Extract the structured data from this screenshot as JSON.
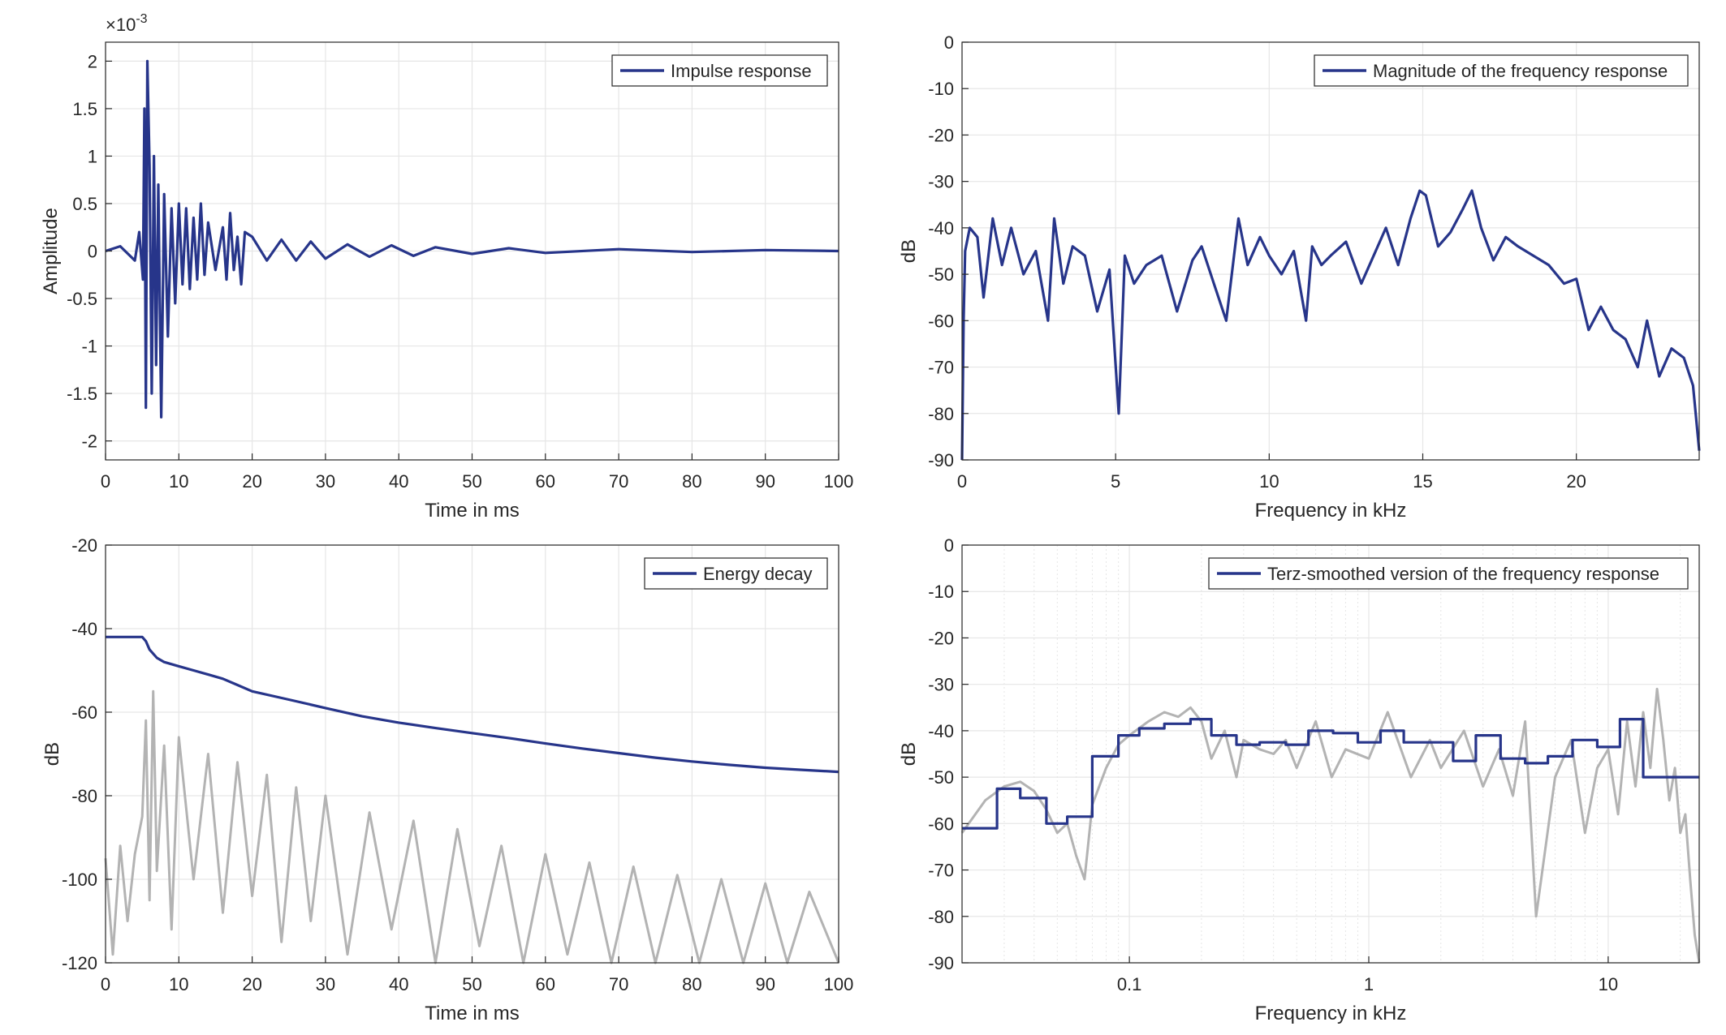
{
  "colors": {
    "series_primary": "#27358a",
    "series_gray": "#b3b3b3",
    "grid": "#e6e6e6",
    "axes": "#262626",
    "background": "#ffffff"
  },
  "chart_data": [
    {
      "id": "impulse",
      "type": "line",
      "title": "",
      "xlabel": "Time in ms",
      "ylabel": "Amplitude",
      "exponent_label": "×10",
      "exponent_value": "-3",
      "xlim": [
        0,
        100
      ],
      "ylim": [
        -2.2,
        2.2
      ],
      "xscale": "linear",
      "xticks": [
        0,
        10,
        20,
        30,
        40,
        50,
        60,
        70,
        80,
        90,
        100
      ],
      "xticklabels": [
        "0",
        "10",
        "20",
        "30",
        "40",
        "50",
        "60",
        "70",
        "80",
        "90",
        "100"
      ],
      "yticks": [
        2,
        1.5,
        1,
        0.5,
        0,
        -0.5,
        -1,
        -1.5,
        -2
      ],
      "yticklabels": [
        "2",
        "1.5",
        "1",
        "0.5",
        "0",
        "-0.5",
        "-1",
        "-1.5",
        "-2"
      ],
      "grid": true,
      "legend": {
        "position": "top-right",
        "entries": [
          "Impulse response"
        ]
      },
      "series": [
        {
          "name": "Impulse response",
          "color": "#27358a",
          "x": [
            0,
            2,
            4,
            4.6,
            5.1,
            5.3,
            5.5,
            5.7,
            6.0,
            6.3,
            6.6,
            6.9,
            7.2,
            7.6,
            8.0,
            8.5,
            9.0,
            9.5,
            10.0,
            10.5,
            11.0,
            11.5,
            12.0,
            12.5,
            13.0,
            13.5,
            14.0,
            15.0,
            16.0,
            16.5,
            17.0,
            17.5,
            18.0,
            18.5,
            19.0,
            20.0,
            22.0,
            24.0,
            26.0,
            28.0,
            30.0,
            33.0,
            36.0,
            39.0,
            42.0,
            45.0,
            50.0,
            55.0,
            60.0,
            70.0,
            80.0,
            90.0,
            100.0
          ],
          "values": [
            0.0,
            0.05,
            -0.1,
            0.2,
            -0.3,
            1.5,
            -1.65,
            2.0,
            0.9,
            -1.5,
            1.0,
            -1.2,
            0.7,
            -1.75,
            0.6,
            -0.9,
            0.45,
            -0.55,
            0.5,
            -0.35,
            0.45,
            -0.4,
            0.35,
            -0.3,
            0.5,
            -0.25,
            0.3,
            -0.2,
            0.25,
            -0.3,
            0.4,
            -0.2,
            0.15,
            -0.35,
            0.2,
            0.15,
            -0.1,
            0.12,
            -0.1,
            0.1,
            -0.08,
            0.07,
            -0.06,
            0.06,
            -0.05,
            0.04,
            -0.03,
            0.03,
            -0.02,
            0.02,
            -0.01,
            0.01,
            0.0
          ]
        }
      ]
    },
    {
      "id": "magnitude",
      "type": "line",
      "title": "",
      "xlabel": "Frequency in kHz",
      "ylabel": "dB",
      "xlim": [
        0,
        24
      ],
      "ylim": [
        -90,
        0
      ],
      "xscale": "linear",
      "xticks": [
        0,
        5,
        10,
        15,
        20
      ],
      "xticklabels": [
        "0",
        "5",
        "10",
        "15",
        "20"
      ],
      "yticks": [
        0,
        -10,
        -20,
        -30,
        -40,
        -50,
        -60,
        -70,
        -80,
        -90
      ],
      "yticklabels": [
        "0",
        "-10",
        "-20",
        "-30",
        "-40",
        "-50",
        "-60",
        "-70",
        "-80",
        "-90"
      ],
      "grid": true,
      "legend": {
        "position": "top-right",
        "entries": [
          "Magnitude of the frequency response"
        ]
      },
      "series": [
        {
          "name": "Magnitude of the frequency response",
          "color": "#27358a",
          "x": [
            0.0,
            0.05,
            0.1,
            0.25,
            0.5,
            0.7,
            1.0,
            1.3,
            1.6,
            2.0,
            2.4,
            2.8,
            3.0,
            3.3,
            3.6,
            4.0,
            4.4,
            4.8,
            5.1,
            5.3,
            5.6,
            6.0,
            6.5,
            7.0,
            7.5,
            7.8,
            8.2,
            8.6,
            9.0,
            9.3,
            9.7,
            10.0,
            10.4,
            10.8,
            11.2,
            11.4,
            11.7,
            12.0,
            12.5,
            13.0,
            13.4,
            13.8,
            14.2,
            14.6,
            14.9,
            15.1,
            15.5,
            15.9,
            16.3,
            16.6,
            16.9,
            17.3,
            17.7,
            18.1,
            18.6,
            19.1,
            19.6,
            20.0,
            20.4,
            20.8,
            21.2,
            21.6,
            22.0,
            22.3,
            22.7,
            23.1,
            23.5,
            23.8,
            24.0
          ],
          "values": [
            -90,
            -60,
            -45,
            -40,
            -42,
            -55,
            -38,
            -48,
            -40,
            -50,
            -45,
            -60,
            -38,
            -52,
            -44,
            -46,
            -58,
            -49,
            -80,
            -46,
            -52,
            -48,
            -46,
            -58,
            -47,
            -44,
            -52,
            -60,
            -38,
            -48,
            -42,
            -46,
            -50,
            -45,
            -60,
            -44,
            -48,
            -46,
            -43,
            -52,
            -46,
            -40,
            -48,
            -38,
            -32,
            -33,
            -44,
            -41,
            -36,
            -32,
            -40,
            -47,
            -42,
            -44,
            -46,
            -48,
            -52,
            -51,
            -62,
            -57,
            -62,
            -64,
            -70,
            -60,
            -72,
            -66,
            -68,
            -74,
            -88
          ]
        }
      ]
    },
    {
      "id": "energy",
      "type": "line",
      "title": "",
      "xlabel": "Time in ms",
      "ylabel": "dB",
      "xlim": [
        0,
        100
      ],
      "ylim": [
        -120,
        -20
      ],
      "xscale": "linear",
      "xticks": [
        0,
        10,
        20,
        30,
        40,
        50,
        60,
        70,
        80,
        90,
        100
      ],
      "xticklabels": [
        "0",
        "10",
        "20",
        "30",
        "40",
        "50",
        "60",
        "70",
        "80",
        "90",
        "100"
      ],
      "yticks": [
        -20,
        -40,
        -60,
        -80,
        -100,
        -120
      ],
      "yticklabels": [
        "-20",
        "-40",
        "-60",
        "-80",
        "-100",
        "-120"
      ],
      "grid": true,
      "legend": {
        "position": "top-right",
        "entries": [
          "Energy decay"
        ]
      },
      "series": [
        {
          "name": "",
          "color": "#b3b3b3",
          "x": [
            0,
            1,
            2,
            3,
            4,
            5,
            5.5,
            6,
            6.5,
            7,
            8,
            9,
            10,
            12,
            14,
            16,
            18,
            20,
            22,
            24,
            26,
            28,
            30,
            33,
            36,
            39,
            42,
            45,
            48,
            51,
            54,
            57,
            60,
            63,
            66,
            69,
            72,
            75,
            78,
            81,
            84,
            87,
            90,
            93,
            96,
            100
          ],
          "values": [
            -95,
            -118,
            -92,
            -110,
            -94,
            -85,
            -62,
            -105,
            -55,
            -98,
            -68,
            -112,
            -66,
            -100,
            -70,
            -108,
            -72,
            -104,
            -75,
            -115,
            -78,
            -110,
            -80,
            -118,
            -84,
            -112,
            -86,
            -120,
            -88,
            -116,
            -92,
            -120,
            -94,
            -118,
            -96,
            -120,
            -97,
            -120,
            -99,
            -120,
            -100,
            -120,
            -101,
            -120,
            -103,
            -120
          ]
        },
        {
          "name": "Energy decay",
          "color": "#27358a",
          "x": [
            0,
            2,
            4,
            5,
            5.5,
            6,
            7,
            8,
            10,
            12,
            14,
            16,
            18,
            20,
            25,
            30,
            35,
            40,
            45,
            50,
            55,
            60,
            65,
            70,
            75,
            80,
            85,
            90,
            95,
            100
          ],
          "values": [
            -42,
            -42,
            -42,
            -42,
            -43,
            -45,
            -47,
            -48,
            -49,
            -50,
            -51,
            -52,
            -53.5,
            -55,
            -57,
            -59,
            -61,
            -62.5,
            -63.8,
            -65,
            -66.2,
            -67.5,
            -68.7,
            -69.8,
            -70.9,
            -71.8,
            -72.6,
            -73.3,
            -73.8,
            -74.3
          ]
        }
      ]
    },
    {
      "id": "terz",
      "type": "line",
      "title": "",
      "xlabel": "Frequency in kHz",
      "ylabel": "dB",
      "xlim": [
        0.02,
        24
      ],
      "ylim": [
        -90,
        0
      ],
      "xscale": "log",
      "xticks": [
        0.1,
        1,
        10
      ],
      "xticklabels": [
        "0.1",
        "1",
        "10"
      ],
      "yticks": [
        0,
        -10,
        -20,
        -30,
        -40,
        -50,
        -60,
        -70,
        -80,
        -90
      ],
      "yticklabels": [
        "0",
        "-10",
        "-20",
        "-30",
        "-40",
        "-50",
        "-60",
        "-70",
        "-80",
        "-90"
      ],
      "grid": true,
      "legend": {
        "position": "top-right",
        "entries": [
          "Terz-smoothed version of the frequency response"
        ]
      },
      "series": [
        {
          "name": "",
          "color": "#b3b3b3",
          "x": [
            0.02,
            0.025,
            0.03,
            0.035,
            0.04,
            0.045,
            0.05,
            0.055,
            0.06,
            0.065,
            0.07,
            0.08,
            0.09,
            0.1,
            0.12,
            0.14,
            0.16,
            0.18,
            0.2,
            0.22,
            0.25,
            0.28,
            0.3,
            0.35,
            0.4,
            0.45,
            0.5,
            0.6,
            0.7,
            0.8,
            1.0,
            1.2,
            1.5,
            1.8,
            2.0,
            2.5,
            3.0,
            3.5,
            4.0,
            4.5,
            5.0,
            6.0,
            7.0,
            8.0,
            9.0,
            10.0,
            11.0,
            12.0,
            13.0,
            14.0,
            15.0,
            16.0,
            17.0,
            18.0,
            19.0,
            20.0,
            21.0,
            22.0,
            23.0,
            24.0
          ],
          "values": [
            -62,
            -55,
            -52,
            -51,
            -53,
            -57,
            -62,
            -60,
            -67,
            -72,
            -56,
            -48,
            -43,
            -41,
            -38,
            -36,
            -37,
            -35,
            -38,
            -46,
            -40,
            -50,
            -42,
            -44,
            -45,
            -42,
            -48,
            -38,
            -50,
            -44,
            -46,
            -36,
            -50,
            -42,
            -48,
            -40,
            -52,
            -44,
            -54,
            -38,
            -80,
            -50,
            -42,
            -62,
            -48,
            -44,
            -58,
            -38,
            -52,
            -36,
            -48,
            -31,
            -42,
            -55,
            -48,
            -62,
            -58,
            -72,
            -84,
            -90
          ]
        },
        {
          "name": "Terz-smoothed version of the frequency response",
          "color": "#27358a",
          "x": [
            0.02,
            0.028,
            0.028,
            0.035,
            0.035,
            0.045,
            0.045,
            0.055,
            0.055,
            0.07,
            0.07,
            0.09,
            0.09,
            0.11,
            0.11,
            0.14,
            0.14,
            0.18,
            0.18,
            0.22,
            0.22,
            0.28,
            0.28,
            0.35,
            0.35,
            0.45,
            0.45,
            0.56,
            0.56,
            0.71,
            0.71,
            0.9,
            0.9,
            1.12,
            1.12,
            1.4,
            1.4,
            1.8,
            1.8,
            2.25,
            2.25,
            2.8,
            2.8,
            3.55,
            3.55,
            4.5,
            4.5,
            5.6,
            5.6,
            7.1,
            7.1,
            9.0,
            9.0,
            11.2,
            11.2,
            14.0,
            14.0,
            18.0,
            18.0,
            24.0
          ],
          "values": [
            -61,
            -61,
            -52.5,
            -52.5,
            -54.5,
            -54.5,
            -60,
            -60,
            -58.5,
            -58.5,
            -45.5,
            -45.5,
            -41,
            -41,
            -39.5,
            -39.5,
            -38.5,
            -38.5,
            -37.5,
            -37.5,
            -41,
            -41,
            -43,
            -43,
            -42.5,
            -42.5,
            -43,
            -43,
            -40,
            -40,
            -40.5,
            -40.5,
            -42.5,
            -42.5,
            -40,
            -40,
            -42.5,
            -42.5,
            -42.5,
            -42.5,
            -46.5,
            -46.5,
            -41,
            -41,
            -46,
            -46,
            -47,
            -47,
            -45.5,
            -45.5,
            -42,
            -42,
            -43.5,
            -43.5,
            -37.5,
            -37.5,
            -50,
            -50,
            -50,
            -50
          ]
        }
      ]
    }
  ]
}
